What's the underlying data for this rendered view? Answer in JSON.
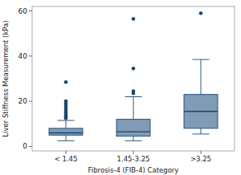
{
  "chart_data": {
    "type": "box",
    "x_label": "Fibrosis-4 (FIB-4) Category",
    "y_label": "Liver Stiffness Measurement (kPa)",
    "categories": [
      "< 1.45",
      "1.45-3.25",
      ">3.25"
    ],
    "boxes": [
      {
        "whisker_low": 2.5,
        "q1": 5,
        "median": 6,
        "q3": 8,
        "whisker_high": 11.5,
        "outliers": [
          12.5,
          13,
          13.5,
          14,
          15,
          16,
          17,
          18,
          19,
          20,
          28.5
        ]
      },
      {
        "whisker_low": 2.5,
        "q1": 4.5,
        "median": 6.5,
        "q3": 12,
        "whisker_high": 22,
        "outliers": [
          23.5,
          24.5,
          34.5,
          56.5
        ]
      },
      {
        "whisker_low": 5.5,
        "q1": 8,
        "median": 15.5,
        "q3": 23,
        "whisker_high": 38.5,
        "outliers": [
          59
        ]
      }
    ],
    "color": "#7f9bb5",
    "ylim": [
      -2,
      62
    ],
    "yticks": [
      0,
      20,
      40,
      60
    ],
    "grid": false
  }
}
